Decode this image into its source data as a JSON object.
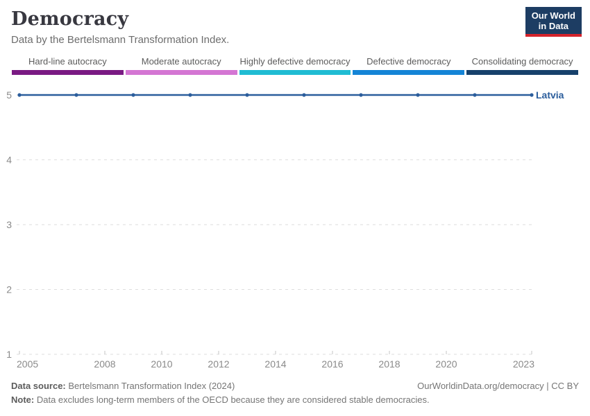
{
  "header": {
    "title": "Democracy",
    "subtitle": "Data by the Bertelsmann Transformation Index.",
    "logo_line1": "Our World",
    "logo_line2": "in Data",
    "logo_bg": "#1d3d63",
    "logo_accent": "#d5232b"
  },
  "legend": {
    "items": [
      {
        "label": "Hard-line autocracy",
        "color": "#7a1a83"
      },
      {
        "label": "Moderate autocracy",
        "color": "#d476d3"
      },
      {
        "label": "Highly defective democracy",
        "color": "#20bcd3"
      },
      {
        "label": "Defective democracy",
        "color": "#1484d6"
      },
      {
        "label": "Consolidating democracy",
        "color": "#16416b"
      }
    ]
  },
  "chart_data": {
    "type": "line",
    "title": "Democracy",
    "xlabel": "",
    "ylabel": "",
    "xlim": [
      2005,
      2023
    ],
    "ylim": [
      1,
      5
    ],
    "grid": "dashed-horizontal",
    "legend_position": "top",
    "x_ticks": [
      2005,
      2008,
      2010,
      2012,
      2014,
      2016,
      2018,
      2020,
      2023
    ],
    "y_ticks": [
      1,
      2,
      3,
      4,
      5
    ],
    "series": [
      {
        "name": "Latvia",
        "color": "#2a5d9c",
        "x": [
          2005,
          2007,
          2009,
          2011,
          2013,
          2015,
          2017,
          2019,
          2021,
          2023
        ],
        "values": [
          5,
          5,
          5,
          5,
          5,
          5,
          5,
          5,
          5,
          5
        ]
      }
    ],
    "axis_label_color": "#8a8a8a",
    "gridline_color": "#dedede",
    "tick_color": "#c6c6c6"
  },
  "footer": {
    "source_label": "Data source:",
    "source_text": "Bertelsmann Transformation Index (2024)",
    "link_text": "OurWorldinData.org/democracy | CC BY",
    "note_label": "Note:",
    "note_text": "Data excludes long-term members of the OECD because they are considered stable democracies."
  }
}
